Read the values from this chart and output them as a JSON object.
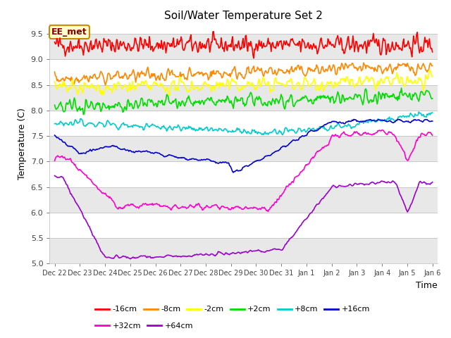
{
  "title": "Soil/Water Temperature Set 2",
  "xlabel": "Time",
  "ylabel": "Temperature (C)",
  "ylim": [
    5.0,
    9.7
  ],
  "yticks": [
    5.0,
    5.5,
    6.0,
    6.5,
    7.0,
    7.5,
    8.0,
    8.5,
    9.0,
    9.5
  ],
  "fig_bg": "#ffffff",
  "plot_bg": "#ffffff",
  "band_color": "#e8e8e8",
  "grid_line_color": "#c8c8c8",
  "annotation_text": "EE_met",
  "annotation_box_color": "#ffffcc",
  "annotation_border_color": "#cc8800",
  "series_colors": {
    "-16cm": "#ff0000",
    "-8cm": "#ff8800",
    "-2cm": "#ffff00",
    "+2cm": "#00dd00",
    "+8cm": "#00cccc",
    "+16cm": "#0000cc",
    "+32cm": "#ff00cc",
    "+64cm": "#9900cc"
  },
  "x_tick_labels": [
    "Dec 22",
    "Dec 23",
    "Dec 24",
    "Dec 25",
    "Dec 26",
    "Dec 27",
    "Dec 28",
    "Dec 29",
    "Dec 30",
    "Dec 31",
    "Jan 1",
    "Jan 2",
    "Jan 3",
    "Jan 4",
    "Jan 5",
    "Jan 6"
  ],
  "num_points": 500,
  "legend_entries": [
    "-16cm",
    "-8cm",
    "-2cm",
    "+2cm",
    "+8cm",
    "+16cm",
    "+32cm",
    "+64cm"
  ]
}
